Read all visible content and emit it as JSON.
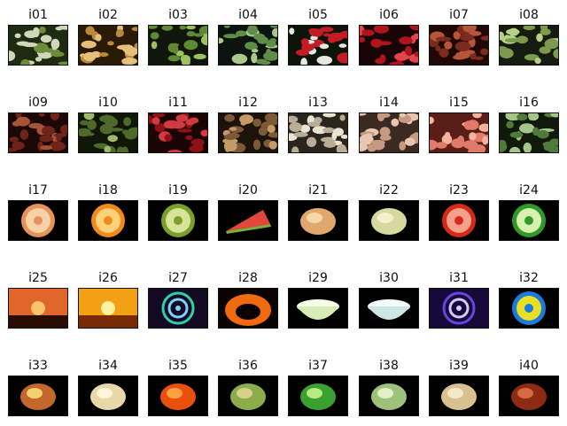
{
  "panels": [
    {
      "label": "i01",
      "subject": "sprouts-icon",
      "colors": [
        "#1f2a12",
        "#cfd7b8",
        "#6a8d3a"
      ]
    },
    {
      "label": "i02",
      "subject": "corn-icon",
      "colors": [
        "#2a1a08",
        "#e6c07a",
        "#b98a3c"
      ]
    },
    {
      "label": "i03",
      "subject": "green-beans-icon",
      "colors": [
        "#11160d",
        "#5d8a33",
        "#9cc25c"
      ]
    },
    {
      "label": "i04",
      "subject": "snow-peas-icon",
      "colors": [
        "#0c1410",
        "#5f8c49",
        "#a7c98a"
      ]
    },
    {
      "label": "i05",
      "subject": "radishes-icon",
      "colors": [
        "#0d140a",
        "#c31c24",
        "#e8e8e0"
      ]
    },
    {
      "label": "i06",
      "subject": "cherries-icon",
      "colors": [
        "#1a0506",
        "#b0151d",
        "#e2454b"
      ]
    },
    {
      "label": "i07",
      "subject": "dates-icon",
      "colors": [
        "#220707",
        "#7a2b1c",
        "#b5563a"
      ]
    },
    {
      "label": "i08",
      "subject": "asparagus-icon",
      "colors": [
        "#161a10",
        "#7c9a4c",
        "#b9cf86"
      ]
    },
    {
      "label": "i09",
      "subject": "nuts-icon",
      "colors": [
        "#1d0808",
        "#6e2518",
        "#a55436"
      ]
    },
    {
      "label": "i10",
      "subject": "brussels-icon",
      "colors": [
        "#101608",
        "#4e6a2a",
        "#9eb86c"
      ]
    },
    {
      "label": "i11",
      "subject": "cranberries-icon",
      "colors": [
        "#1a0404",
        "#8c1216",
        "#d03a40"
      ]
    },
    {
      "label": "i12",
      "subject": "mushrooms-brown-icon",
      "colors": [
        "#1c140c",
        "#7d5a36",
        "#c59a66"
      ]
    },
    {
      "label": "i13",
      "subject": "mushrooms-white-icon",
      "colors": [
        "#2a261e",
        "#b9ad97",
        "#ece4d3"
      ]
    },
    {
      "label": "i14",
      "subject": "potatoes-icon",
      "colors": [
        "#3a2a22",
        "#c69a80",
        "#e8c7b0"
      ]
    },
    {
      "label": "i15",
      "subject": "peaches-icon",
      "colors": [
        "#5a1e18",
        "#e07a6a",
        "#f4b39a"
      ]
    },
    {
      "label": "i16",
      "subject": "limes-icon",
      "colors": [
        "#0f1a0c",
        "#4f7a3a",
        "#a6c58a"
      ]
    },
    {
      "label": "i17",
      "subject": "onion-slice-icon",
      "colors": [
        "#000000",
        "#e6925a",
        "#f6d2a6"
      ]
    },
    {
      "label": "i18",
      "subject": "orange-slice-icon",
      "colors": [
        "#000000",
        "#f08a1c",
        "#ffd27a"
      ]
    },
    {
      "label": "i19",
      "subject": "kiwi-icon",
      "colors": [
        "#000000",
        "#7aa02a",
        "#d8e39a"
      ]
    },
    {
      "label": "i20",
      "subject": "watermelon-icon",
      "colors": [
        "#000000",
        "#e2463c",
        "#7fae3a"
      ]
    },
    {
      "label": "i21",
      "subject": "cantaloupe-icon",
      "colors": [
        "#000000",
        "#e0a86c",
        "#f6d8a8"
      ]
    },
    {
      "label": "i22",
      "subject": "pear-icon",
      "colors": [
        "#000000",
        "#d6d8a0",
        "#f4f0cc"
      ]
    },
    {
      "label": "i23",
      "subject": "tomato-slice-icon",
      "colors": [
        "#000000",
        "#d42a1c",
        "#f5a08a"
      ]
    },
    {
      "label": "i24",
      "subject": "pepper-slice-icon",
      "colors": [
        "#000000",
        "#2f9a2a",
        "#d8f0b0"
      ]
    },
    {
      "label": "i25",
      "subject": "sunset-trees-icon",
      "colors": [
        "#2a0c04",
        "#e0662a",
        "#f7c46a"
      ]
    },
    {
      "label": "i26",
      "subject": "sunset-sun-icon",
      "colors": [
        "#7a2a04",
        "#f4a014",
        "#fff1a0"
      ]
    },
    {
      "label": "i27",
      "subject": "spiral-pattern-icon",
      "colors": [
        "#120a22",
        "#2fcfa8",
        "#7ad0ff"
      ]
    },
    {
      "label": "i28",
      "subject": "pumpkin-cat-icon",
      "colors": [
        "#0a0300",
        "#f06a10",
        "#ffc060"
      ]
    },
    {
      "label": "i29",
      "subject": "bowl-green-icon",
      "colors": [
        "#000000",
        "#d8ecb8",
        "#f6fde6"
      ]
    },
    {
      "label": "i30",
      "subject": "bowl-white-icon",
      "colors": [
        "#000000",
        "#cce6e2",
        "#f2fbfa"
      ]
    },
    {
      "label": "i31",
      "subject": "spiral-purple-icon",
      "colors": [
        "#160a3a",
        "#6a44e0",
        "#d6c8ff"
      ]
    },
    {
      "label": "i32",
      "subject": "mandala-icon",
      "colors": [
        "#000000",
        "#1a7ce0",
        "#e8e020"
      ]
    },
    {
      "label": "i33",
      "subject": "cake-candles-icon",
      "colors": [
        "#000000",
        "#c2682a",
        "#f6d070"
      ]
    },
    {
      "label": "i34",
      "subject": "cheese-wedge-icon",
      "colors": [
        "#000000",
        "#e8d8a8",
        "#fff6da"
      ]
    },
    {
      "label": "i35",
      "subject": "orange-fruit-icon",
      "colors": [
        "#000000",
        "#e8500c",
        "#ffa040"
      ]
    },
    {
      "label": "i36",
      "subject": "papaya-icon",
      "colors": [
        "#000000",
        "#8cae4a",
        "#d6d08a"
      ]
    },
    {
      "label": "i37",
      "subject": "green-peppers-icon",
      "colors": [
        "#000000",
        "#3aa030",
        "#b8ea80"
      ]
    },
    {
      "label": "i38",
      "subject": "cabbage-icon",
      "colors": [
        "#000000",
        "#9ec27a",
        "#e0f0c8"
      ]
    },
    {
      "label": "i39",
      "subject": "melon-icon",
      "colors": [
        "#000000",
        "#d8c090",
        "#f4e8c8"
      ]
    },
    {
      "label": "i40",
      "subject": "roast-icon",
      "colors": [
        "#000000",
        "#8c2a14",
        "#d86a40"
      ]
    }
  ]
}
